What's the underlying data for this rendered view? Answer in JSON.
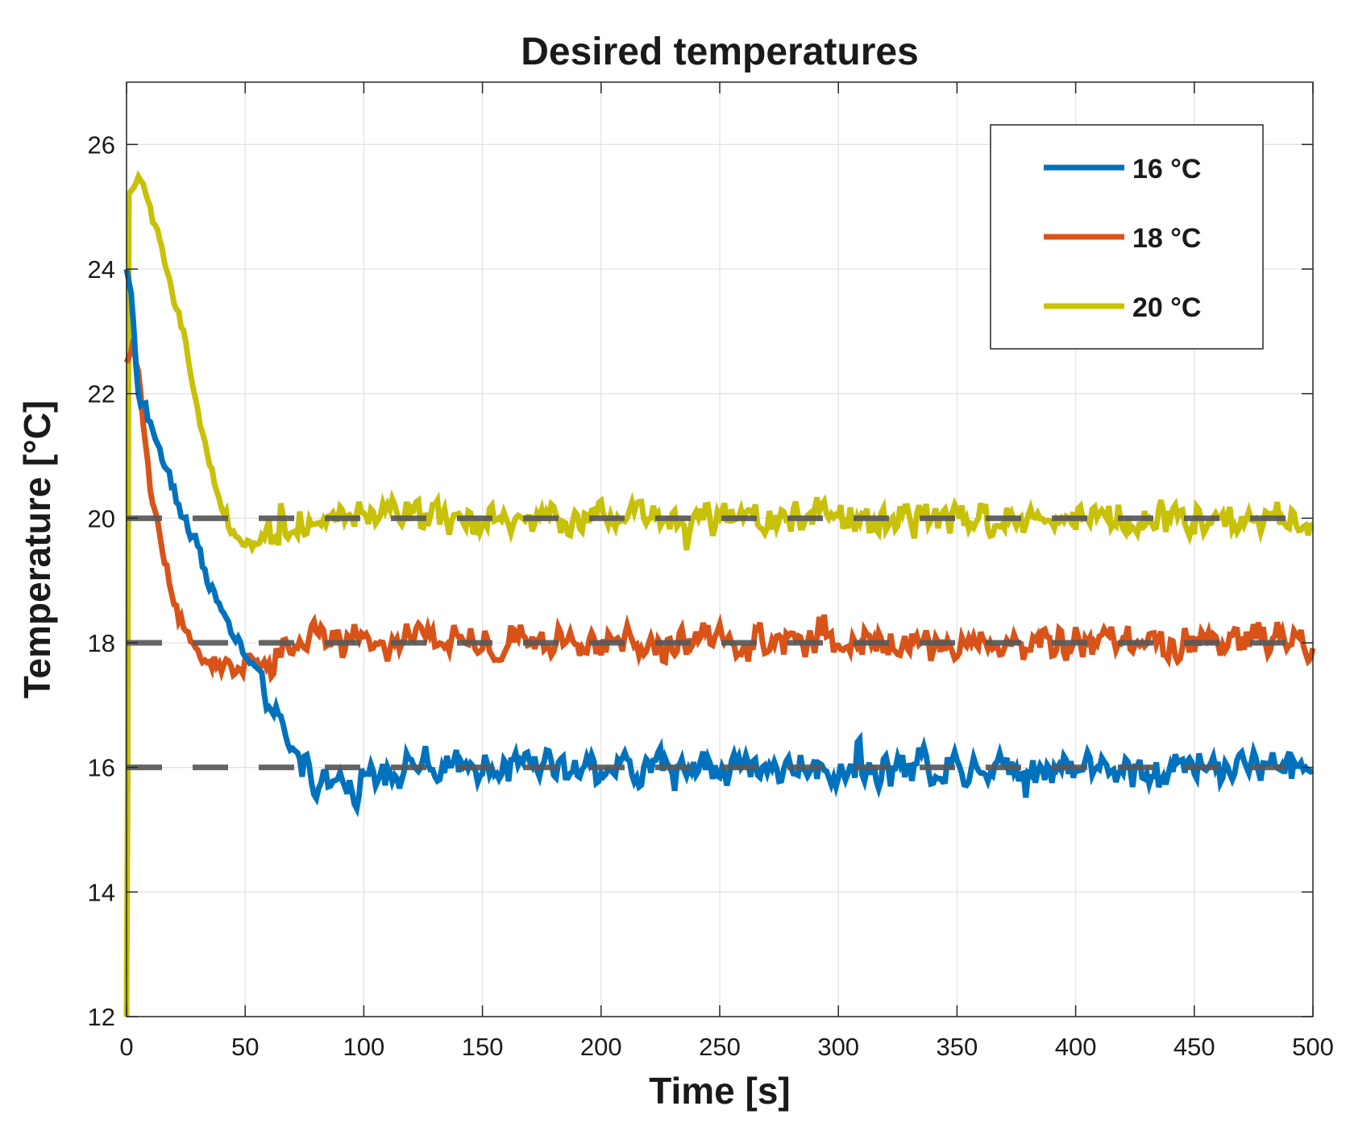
{
  "chart_data": {
    "type": "line",
    "title": "Desired temperatures",
    "xlabel": "Time [s]",
    "ylabel": "Temperature [°C]",
    "xlim": [
      0,
      500
    ],
    "ylim": [
      12,
      27
    ],
    "grid": true,
    "legend_position": "top-right",
    "x_ticks": [
      0,
      50,
      100,
      150,
      200,
      250,
      300,
      350,
      400,
      450,
      500
    ],
    "y_ticks": [
      12,
      14,
      16,
      18,
      20,
      22,
      24,
      26
    ],
    "x_tick_labels": [
      "0",
      "50",
      "100",
      "150",
      "200",
      "250",
      "300",
      "350",
      "400",
      "450",
      "500"
    ],
    "y_tick_labels": [
      "12",
      "14",
      "16",
      "18",
      "20",
      "22",
      "24",
      "26"
    ],
    "reference_lines": [
      {
        "name": "16 °C setpoint",
        "value": 16,
        "style": "dashed",
        "color": "#595959"
      },
      {
        "name": "18 °C setpoint",
        "value": 18,
        "style": "dashed",
        "color": "#595959"
      },
      {
        "name": "20 °C setpoint",
        "value": 20,
        "style": "dashed",
        "color": "#595959"
      }
    ],
    "series": [
      {
        "name": "16 °C",
        "color": "#0072BD",
        "noise_amplitude": 0.45,
        "points": [
          [
            0,
            24.0
          ],
          [
            2,
            23.6
          ],
          [
            5,
            22.0
          ],
          [
            10,
            21.5
          ],
          [
            15,
            21.0
          ],
          [
            20,
            20.5
          ],
          [
            25,
            20.0
          ],
          [
            30,
            19.5
          ],
          [
            35,
            19.0
          ],
          [
            40,
            18.5
          ],
          [
            45,
            18.2
          ],
          [
            50,
            17.8
          ],
          [
            55,
            17.5
          ],
          [
            60,
            17.0
          ],
          [
            65,
            16.6
          ],
          [
            70,
            16.3
          ],
          [
            75,
            16.0
          ],
          [
            80,
            15.8
          ],
          [
            90,
            15.7
          ],
          [
            100,
            15.75
          ],
          [
            110,
            16.0
          ],
          [
            500,
            16.0
          ]
        ]
      },
      {
        "name": "18 °C",
        "color": "#D95319",
        "noise_amplitude": 0.45,
        "points": [
          [
            0,
            22.5
          ],
          [
            3,
            22.8
          ],
          [
            6,
            22.0
          ],
          [
            10,
            20.5
          ],
          [
            15,
            19.5
          ],
          [
            20,
            18.6
          ],
          [
            25,
            18.2
          ],
          [
            30,
            17.9
          ],
          [
            35,
            17.7
          ],
          [
            40,
            17.6
          ],
          [
            50,
            17.65
          ],
          [
            60,
            17.65
          ],
          [
            65,
            17.8
          ],
          [
            70,
            18.0
          ],
          [
            500,
            18.0
          ]
        ]
      },
      {
        "name": "20 °C",
        "color": "#C8C10A",
        "noise_amplitude": 0.42,
        "points": [
          [
            0,
            12.0
          ],
          [
            0.5,
            16.0
          ],
          [
            1.0,
            25.2
          ],
          [
            5,
            25.5
          ],
          [
            10,
            25.0
          ],
          [
            15,
            24.3
          ],
          [
            20,
            23.5
          ],
          [
            25,
            22.7
          ],
          [
            30,
            21.8
          ],
          [
            35,
            20.8
          ],
          [
            40,
            20.2
          ],
          [
            45,
            19.8
          ],
          [
            50,
            19.6
          ],
          [
            60,
            19.7
          ],
          [
            70,
            19.9
          ],
          [
            80,
            20.0
          ],
          [
            500,
            20.0
          ]
        ]
      }
    ]
  }
}
